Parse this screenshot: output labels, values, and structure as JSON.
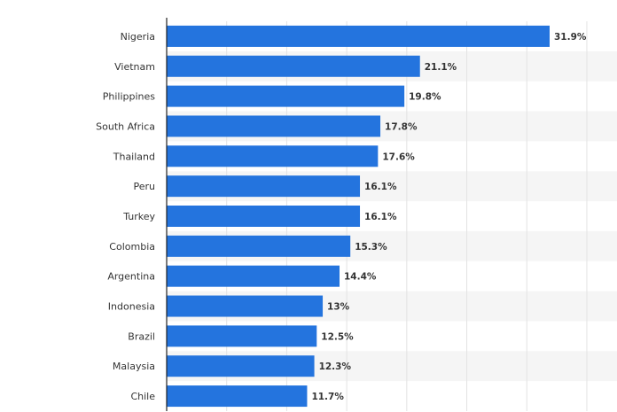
{
  "chart_data": {
    "type": "bar",
    "orientation": "horizontal",
    "categories": [
      "Nigeria",
      "Vietnam",
      "Philippines",
      "South Africa",
      "Thailand",
      "Peru",
      "Turkey",
      "Colombia",
      "Argentina",
      "Indonesia",
      "Brazil",
      "Malaysia",
      "Chile"
    ],
    "values": [
      31.9,
      21.1,
      19.8,
      17.8,
      17.6,
      16.1,
      16.1,
      15.3,
      14.4,
      13,
      12.5,
      12.3,
      11.7
    ],
    "value_labels": [
      "31.9%",
      "21.1%",
      "19.8%",
      "17.8%",
      "17.6%",
      "16.1%",
      "16.1%",
      "15.3%",
      "14.4%",
      "13%",
      "12.5%",
      "12.3%",
      "11.7%"
    ],
    "xlim": [
      0,
      35
    ],
    "grid": true,
    "title": "",
    "xlabel": "",
    "ylabel": "",
    "colors": {
      "bar": "#2474de",
      "band": "#f5f5f5",
      "grid": "#e3e3e3",
      "axis": "#222222"
    }
  }
}
